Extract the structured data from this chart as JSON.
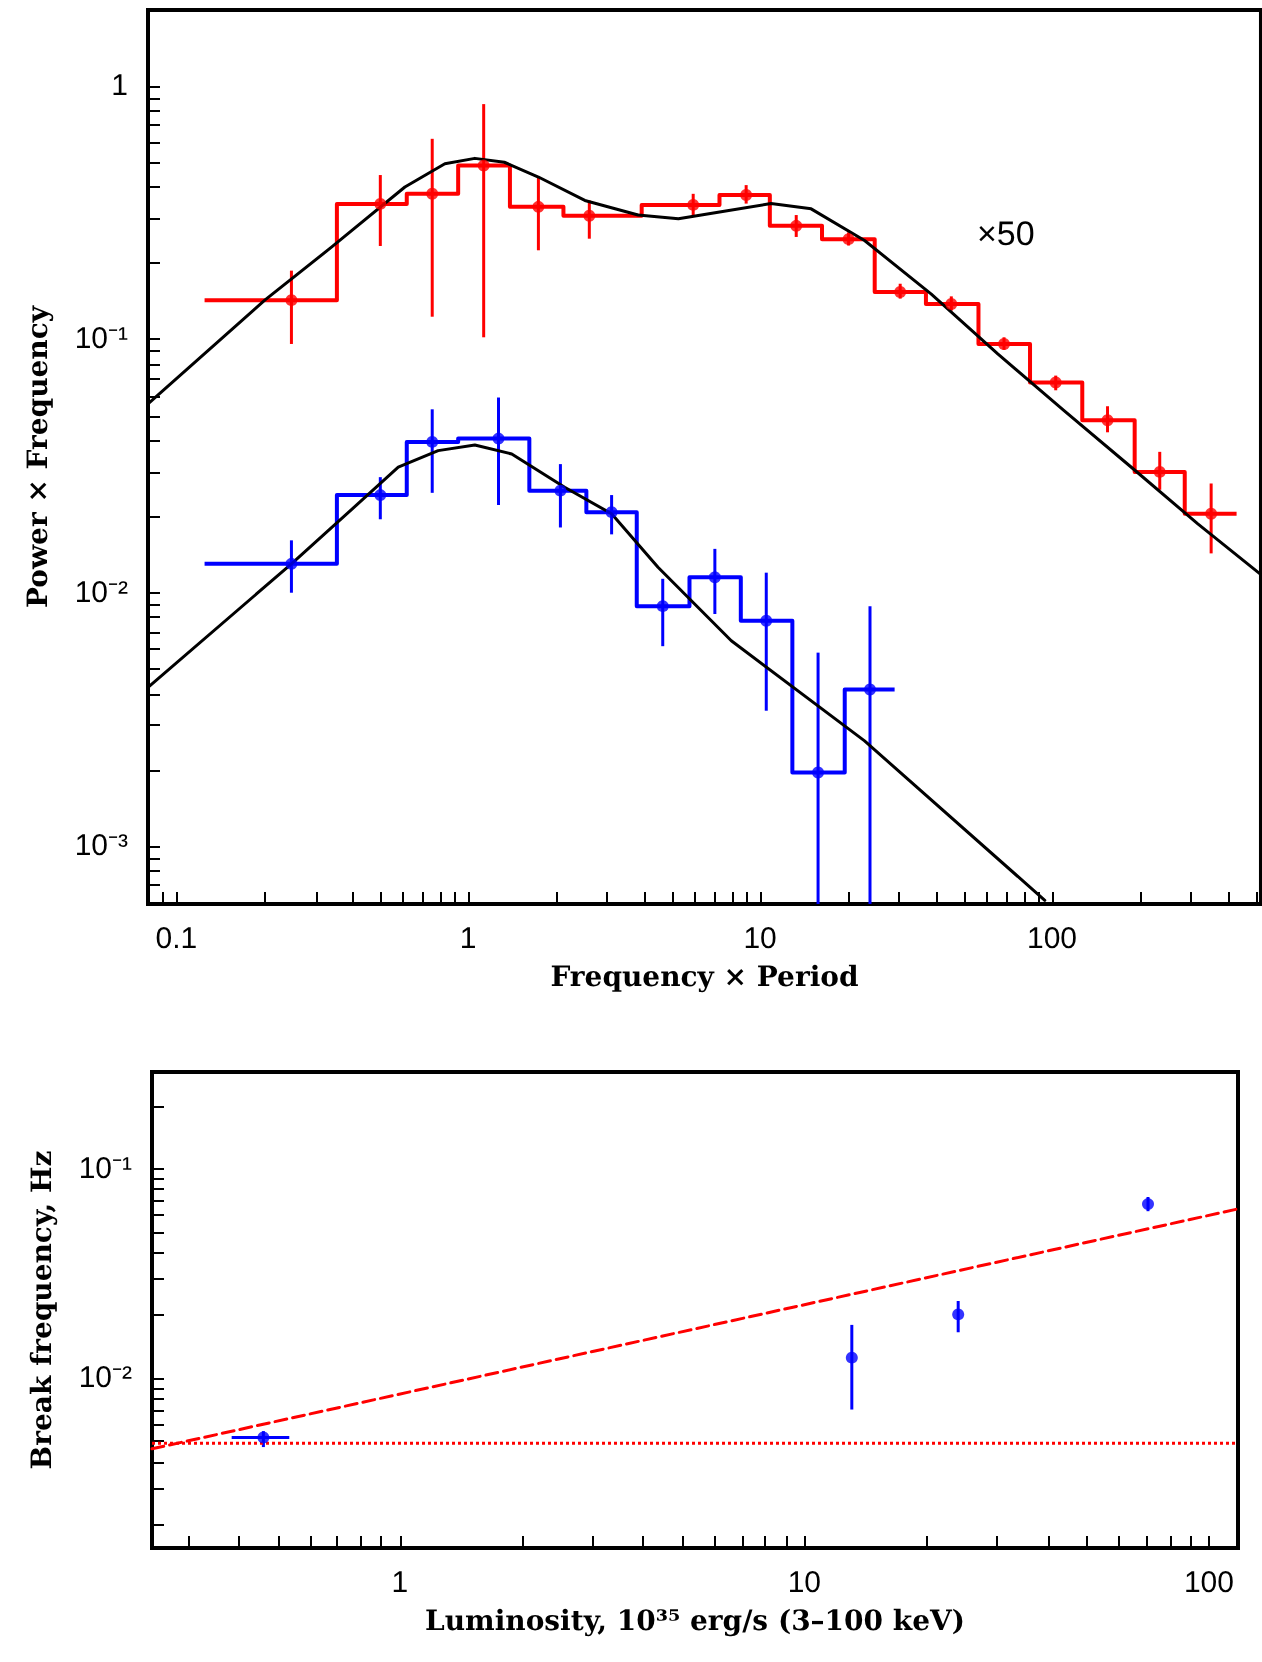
{
  "chart_data": [
    {
      "type": "step",
      "xlabel": "Frequency × Period",
      "ylabel": "Power × Frequency",
      "log": "xy",
      "grid": false,
      "legend": false,
      "xlim": [
        0.08,
        520
      ],
      "ylim": [
        0.00059,
        2
      ],
      "xticks": [
        {
          "value": 0.09,
          "label": null
        },
        0.1,
        {
          "value": 0.2,
          "label": null
        },
        {
          "value": 0.3,
          "label": null
        },
        {
          "value": 0.4,
          "label": null
        },
        {
          "value": 0.5,
          "label": null
        },
        {
          "value": 0.6,
          "label": null
        },
        {
          "value": 0.7,
          "label": null
        },
        {
          "value": 0.8,
          "label": null
        },
        {
          "value": 0.9,
          "label": null
        },
        1,
        {
          "value": 2,
          "label": null
        },
        {
          "value": 3,
          "label": null
        },
        {
          "value": 4,
          "label": null
        },
        {
          "value": 5,
          "label": null
        },
        {
          "value": 6,
          "label": null
        },
        {
          "value": 7,
          "label": null
        },
        {
          "value": 8,
          "label": null
        },
        {
          "value": 9,
          "label": null
        },
        10,
        {
          "value": 20,
          "label": null
        },
        {
          "value": 30,
          "label": null
        },
        {
          "value": 40,
          "label": null
        },
        {
          "value": 50,
          "label": null
        },
        {
          "value": 60,
          "label": null
        },
        {
          "value": 70,
          "label": null
        },
        {
          "value": 80,
          "label": null
        },
        {
          "value": 90,
          "label": null
        },
        100,
        {
          "value": 200,
          "label": null
        },
        {
          "value": 300,
          "label": null
        },
        {
          "value": 400,
          "label": null
        },
        {
          "value": 500,
          "label": null
        }
      ],
      "yticks": [
        {
          "value": 0.0006,
          "label": null
        },
        {
          "value": 0.0007,
          "label": null
        },
        {
          "value": 0.0008,
          "label": null
        },
        {
          "value": 0.0009,
          "label": null
        },
        {
          "value": 0.001,
          "label": "10⁻³"
        },
        {
          "value": 0.002,
          "label": null
        },
        {
          "value": 0.003,
          "label": null
        },
        {
          "value": 0.004,
          "label": null
        },
        {
          "value": 0.005,
          "label": null
        },
        {
          "value": 0.006,
          "label": null
        },
        {
          "value": 0.007,
          "label": null
        },
        {
          "value": 0.008,
          "label": null
        },
        {
          "value": 0.009,
          "label": null
        },
        {
          "value": 0.01,
          "label": "10⁻²"
        },
        {
          "value": 0.02,
          "label": null
        },
        {
          "value": 0.03,
          "label": null
        },
        {
          "value": 0.04,
          "label": null
        },
        {
          "value": 0.05,
          "label": null
        },
        {
          "value": 0.06,
          "label": null
        },
        {
          "value": 0.07,
          "label": null
        },
        {
          "value": 0.08,
          "label": null
        },
        {
          "value": 0.09,
          "label": null
        },
        {
          "value": 0.1,
          "label": "10⁻¹"
        },
        {
          "value": 0.2,
          "label": null
        },
        {
          "value": 0.3,
          "label": null
        },
        {
          "value": 0.4,
          "label": null
        },
        {
          "value": 0.5,
          "label": null
        },
        {
          "value": 0.6,
          "label": null
        },
        {
          "value": 0.7,
          "label": null
        },
        {
          "value": 0.8,
          "label": null
        },
        {
          "value": 0.9,
          "label": null
        },
        1,
        {
          "value": 2,
          "label": null
        }
      ],
      "annotations": [
        "×50"
      ],
      "series": [
        {
          "color": "#ff0000",
          "x": [
            0.125,
            0.355,
            0.616,
            0.924,
            1.39,
            2.12,
            3.93,
            7.26,
            10.8,
            16.3,
            24.7,
            37.0,
            56.0,
            84.1,
            127,
            192,
            285,
            429
          ],
          "values": [
            0.143,
            0.343,
            0.376,
            0.486,
            0.334,
            0.308,
            0.34,
            0.372,
            0.281,
            0.249,
            0.154,
            0.138,
            0.096,
            0.0676,
            0.048,
            0.03,
            0.0205,
            0.0205
          ]
        },
        {
          "type": "scatter",
          "marker": "circle",
          "color": "#ff0000",
          "x": [
            0.248,
            0.5,
            0.753,
            1.13,
            1.74,
            2.6,
            5.9,
            8.96,
            13.3,
            20.1,
            30.2,
            45.2,
            68.5,
            103,
            155,
            234,
            351
          ],
          "values": [
            0.143,
            0.343,
            0.376,
            0.486,
            0.334,
            0.308,
            0.34,
            0.372,
            0.281,
            0.249,
            0.154,
            0.138,
            0.096,
            0.0676,
            0.048,
            0.03,
            0.0205
          ],
          "errors": [
            [
              0.096,
              0.187
            ],
            [
              0.234,
              0.446
            ],
            [
              0.123,
              0.62
            ],
            [
              0.102,
              0.85
            ],
            [
              0.225,
              0.438
            ],
            [
              0.25,
              0.354
            ],
            [
              0.305,
              0.376
            ],
            [
              0.344,
              0.407
            ],
            [
              0.254,
              0.31
            ],
            [
              0.235,
              0.265
            ],
            [
              0.145,
              0.166
            ],
            [
              0.13,
              0.148
            ],
            [
              0.091,
              0.102
            ],
            [
              0.063,
              0.072
            ],
            [
              0.043,
              0.0545
            ],
            [
              0.0255,
              0.036
            ],
            [
              0.0143,
              0.027
            ]
          ]
        },
        {
          "type": "line",
          "color": "#000000",
          "x": [
            0.08,
            0.201,
            0.341,
            0.607,
            0.832,
            1.054,
            1.33,
            1.74,
            2.51,
            3.82,
            5.25,
            7.18,
            10.9,
            14.96,
            22.8,
            38.6,
            65.2,
            110,
            187,
            316,
            515
          ],
          "values": [
            0.0557,
            0.143,
            0.232,
            0.4,
            0.494,
            0.519,
            0.501,
            0.438,
            0.354,
            0.31,
            0.3,
            0.318,
            0.344,
            0.328,
            0.246,
            0.151,
            0.0877,
            0.0524,
            0.0313,
            0.0187,
            0.0119
          ]
        },
        {
          "color": "#0000ff",
          "x": [
            0.125,
            0.355,
            0.616,
            0.924,
            1.62,
            2.54,
            3.78,
            5.73,
            8.59,
            12.9,
            19.5,
            28.9
          ],
          "values": [
            0.013,
            0.0243,
            0.0394,
            0.0406,
            0.0253,
            0.0208,
            0.00885,
            0.0115,
            0.00775,
            0.00195,
            0.00415,
            0.00415
          ]
        },
        {
          "type": "scatter",
          "marker": "circle",
          "color": "#0000ff",
          "x": [
            0.248,
            0.5,
            0.753,
            1.27,
            2.07,
            3.1,
            4.64,
            7.0,
            10.5,
            15.8,
            23.8
          ],
          "values": [
            0.013,
            0.0243,
            0.0394,
            0.0406,
            0.0253,
            0.0208,
            0.00885,
            0.0115,
            0.00775,
            0.00195,
            0.00415
          ],
          "errors": [
            [
              0.01,
              0.0161
            ],
            [
              0.0195,
              0.0286
            ],
            [
              0.0248,
              0.053
            ],
            [
              0.0222,
              0.059
            ],
            [
              0.0181,
              0.0322
            ],
            [
              0.017,
              0.0243
            ],
            [
              0.00615,
              0.01135
            ],
            [
              0.00824,
              0.0149
            ],
            [
              0.00342,
              0.012
            ],
            [
              0.00059,
              0.0058
            ],
            [
              0.00059,
              0.00885
            ]
          ]
        },
        {
          "type": "line",
          "color": "#000000",
          "x": [
            0.08,
            0.248,
            0.341,
            0.576,
            0.789,
            1.054,
            1.41,
            2.14,
            3.1,
            4.47,
            7.97,
            22.8,
            94.5
          ],
          "values": [
            0.00423,
            0.013,
            0.0181,
            0.0313,
            0.0364,
            0.0383,
            0.0353,
            0.0261,
            0.0205,
            0.0126,
            0.00646,
            0.0026,
            0.00061
          ]
        }
      ]
    },
    {
      "type": "scatter",
      "xlabel": "Luminosity, 10³⁵ erg/s (3–100 keV)",
      "ylabel": "Break frequency, Hz",
      "log": "xy",
      "grid": false,
      "legend": false,
      "xlim": [
        0.244,
        118
      ],
      "ylim": [
        0.00155,
        0.29
      ],
      "xticks": [
        {
          "value": 0.3,
          "label": null
        },
        {
          "value": 0.4,
          "label": null
        },
        {
          "value": 0.5,
          "label": null
        },
        {
          "value": 0.6,
          "label": null
        },
        {
          "value": 0.7,
          "label": null
        },
        {
          "value": 0.8,
          "label": null
        },
        {
          "value": 0.9,
          "label": null
        },
        1,
        {
          "value": 2,
          "label": null
        },
        {
          "value": 3,
          "label": null
        },
        {
          "value": 4,
          "label": null
        },
        {
          "value": 5,
          "label": null
        },
        {
          "value": 6,
          "label": null
        },
        {
          "value": 7,
          "label": null
        },
        {
          "value": 8,
          "label": null
        },
        {
          "value": 9,
          "label": null
        },
        10,
        {
          "value": 20,
          "label": null
        },
        {
          "value": 30,
          "label": null
        },
        {
          "value": 40,
          "label": null
        },
        {
          "value": 50,
          "label": null
        },
        {
          "value": 60,
          "label": null
        },
        {
          "value": 70,
          "label": null
        },
        {
          "value": 80,
          "label": null
        },
        {
          "value": 90,
          "label": null
        },
        100
      ],
      "yticks": [
        {
          "value": 0.002,
          "label": null
        },
        {
          "value": 0.003,
          "label": null
        },
        {
          "value": 0.004,
          "label": null
        },
        {
          "value": 0.005,
          "label": null
        },
        {
          "value": 0.006,
          "label": null
        },
        {
          "value": 0.007,
          "label": null
        },
        {
          "value": 0.008,
          "label": null
        },
        {
          "value": 0.009,
          "label": null
        },
        {
          "value": 0.01,
          "label": "10⁻²"
        },
        {
          "value": 0.02,
          "label": null
        },
        {
          "value": 0.03,
          "label": null
        },
        {
          "value": 0.04,
          "label": null
        },
        {
          "value": 0.05,
          "label": null
        },
        {
          "value": 0.06,
          "label": null
        },
        {
          "value": 0.07,
          "label": null
        },
        {
          "value": 0.08,
          "label": null
        },
        {
          "value": 0.09,
          "label": null
        },
        {
          "value": 0.1,
          "label": "10⁻¹"
        },
        {
          "value": 0.2,
          "label": null
        }
      ],
      "ref_lines": [
        {
          "axis": "y",
          "value": 0.0049,
          "color": "#ff0000",
          "line_style": "dotted"
        }
      ],
      "series": [
        {
          "marker": "circle",
          "color": "#0000ff",
          "x": [
            0.46,
            13.1,
            24.0,
            70.7
          ],
          "values": [
            0.00522,
            0.01256,
            0.0202,
            0.0679
          ],
          "errors": [
            [
              0.0047,
              0.0056
            ],
            [
              0.0071,
              0.018
            ],
            [
              0.0166,
              0.0234
            ],
            [
              0.0628,
              0.0734
            ]
          ],
          "xerrors": [
            [
              0.384,
              0.533
            ],
            null,
            null,
            null
          ]
        },
        {
          "type": "line",
          "color": "#ff0000",
          "line_style": "dashed",
          "x": [
            0.244,
            118
          ],
          "values": [
            0.00461,
            0.0644
          ]
        }
      ]
    }
  ]
}
